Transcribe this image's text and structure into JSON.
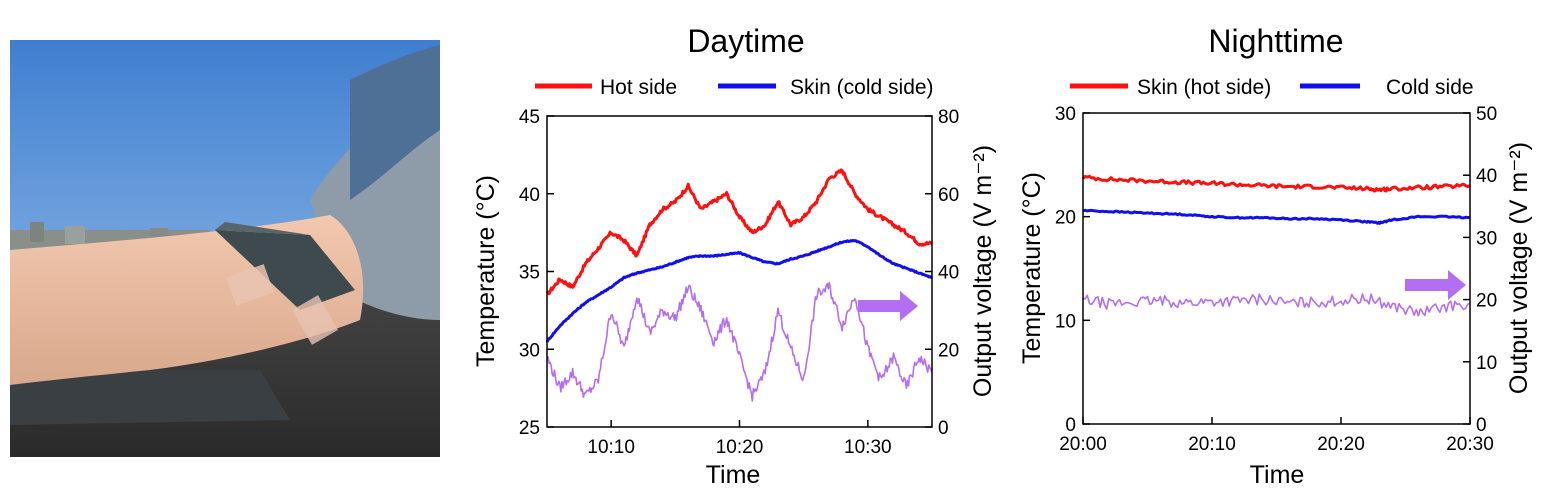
{
  "colors": {
    "hot": "#ff1010",
    "cold": "#1010ee",
    "voltage": "#b36ef2",
    "arrow": "#b36ef2"
  },
  "photo": {
    "description_icon": "photo-arm-with-device-outdoors"
  },
  "chart_data": [
    {
      "type": "line",
      "title": "Daytime",
      "xlabel": "Time",
      "ylabel": "Temperature (°C)",
      "y2label": "Output voltage (V m⁻²)",
      "x_unit": "minutes after 10:00",
      "xlim": [
        5,
        35
      ],
      "ylim": [
        25,
        45
      ],
      "y2lim": [
        0,
        80
      ],
      "xticks": [
        10,
        20,
        30
      ],
      "xticklabels": [
        "10:10",
        "10:20",
        "10:30"
      ],
      "yticks": [
        25,
        30,
        35,
        40,
        45
      ],
      "y2ticks": [
        0,
        20,
        40,
        60,
        80
      ],
      "legend": "top",
      "series": [
        {
          "name": "Hot side",
          "axis": "left",
          "color": "#ff1010",
          "x": [
            5,
            6,
            7,
            8,
            9,
            10,
            11,
            12,
            13,
            14,
            15,
            16,
            17,
            18,
            19,
            20,
            21,
            22,
            23,
            24,
            25,
            26,
            27,
            28,
            29,
            30,
            31,
            32,
            33,
            34,
            35
          ],
          "y": [
            33.5,
            34.5,
            34.0,
            35.5,
            36.5,
            37.5,
            37.0,
            36.0,
            38.0,
            39.0,
            39.5,
            40.5,
            39.0,
            39.5,
            40.0,
            38.5,
            37.5,
            38.0,
            39.5,
            38.0,
            38.5,
            39.5,
            41.0,
            41.5,
            40.0,
            39.0,
            38.5,
            38.0,
            37.5,
            36.8,
            36.8
          ]
        },
        {
          "name": "Skin (cold side)",
          "axis": "left",
          "color": "#1010ee",
          "x": [
            5,
            6,
            7,
            8,
            9,
            10,
            11,
            12,
            13,
            14,
            15,
            16,
            17,
            18,
            19,
            20,
            21,
            22,
            23,
            24,
            25,
            26,
            27,
            28,
            29,
            30,
            31,
            32,
            33,
            34,
            35
          ],
          "y": [
            30.5,
            31.5,
            32.3,
            33.0,
            33.5,
            34.0,
            34.6,
            34.9,
            35.1,
            35.3,
            35.6,
            35.9,
            36.0,
            36.0,
            36.1,
            36.2,
            35.9,
            35.6,
            35.5,
            35.8,
            36.0,
            36.3,
            36.6,
            36.9,
            37.0,
            36.6,
            36.0,
            35.5,
            35.2,
            34.9,
            34.6
          ]
        },
        {
          "name": "",
          "axis": "right",
          "color": "#b36ef2",
          "x": [
            5,
            6,
            7,
            8,
            9,
            10,
            11,
            12,
            13,
            14,
            15,
            16,
            17,
            18,
            19,
            20,
            21,
            22,
            23,
            24,
            25,
            26,
            27,
            28,
            29,
            30,
            31,
            32,
            33,
            34,
            35
          ],
          "y": [
            18,
            10,
            14,
            8,
            12,
            30,
            20,
            34,
            24,
            30,
            28,
            36,
            30,
            22,
            28,
            18,
            8,
            14,
            30,
            20,
            12,
            34,
            36,
            26,
            34,
            20,
            12,
            18,
            10,
            18,
            14
          ]
        }
      ],
      "annotation": {
        "type": "arrow",
        "direction": "right",
        "meaning": "right axis",
        "color": "#b36ef2"
      }
    },
    {
      "type": "line",
      "title": "Nighttime",
      "xlabel": "Time",
      "ylabel": "Temperature (°C)",
      "y2label": "Output voltage (V m⁻²)",
      "x_unit": "minutes after 20:00",
      "xlim": [
        0,
        30
      ],
      "ylim": [
        0,
        30
      ],
      "y2lim": [
        0,
        50
      ],
      "xticks": [
        0,
        10,
        20,
        30
      ],
      "xticklabels": [
        "20:00",
        "20:10",
        "20:20",
        "20:30"
      ],
      "yticks": [
        0,
        10,
        20,
        30
      ],
      "y2ticks": [
        0,
        10,
        20,
        30,
        40,
        50
      ],
      "legend": "top",
      "series": [
        {
          "name": "Skin (hot side)",
          "axis": "left",
          "color": "#ff1010",
          "x": [
            0,
            2,
            4,
            6,
            8,
            10,
            12,
            14,
            16,
            18,
            20,
            22,
            23,
            24,
            26,
            28,
            30
          ],
          "y": [
            23.8,
            23.6,
            23.5,
            23.4,
            23.3,
            23.2,
            23.1,
            23.0,
            22.9,
            22.9,
            22.8,
            22.7,
            22.6,
            22.7,
            22.8,
            22.9,
            23.0
          ]
        },
        {
          "name": "Cold side",
          "axis": "left",
          "color": "#1010ee",
          "x": [
            0,
            2,
            4,
            6,
            8,
            10,
            12,
            14,
            16,
            18,
            20,
            22,
            23,
            24,
            26,
            28,
            30
          ],
          "y": [
            20.6,
            20.5,
            20.4,
            20.3,
            20.2,
            20.0,
            19.9,
            19.9,
            19.8,
            19.8,
            19.7,
            19.5,
            19.4,
            19.7,
            20.0,
            20.0,
            19.9
          ]
        },
        {
          "name": "",
          "axis": "right",
          "color": "#b36ef2",
          "x": [
            0,
            2,
            4,
            6,
            8,
            10,
            12,
            14,
            16,
            18,
            20,
            22,
            24,
            26,
            28,
            30
          ],
          "y": [
            20.0,
            19.3,
            19.6,
            19.8,
            19.5,
            19.7,
            19.8,
            20.1,
            19.4,
            19.6,
            19.8,
            20.2,
            19.0,
            17.8,
            18.8,
            19.4
          ]
        }
      ],
      "annotation": {
        "type": "arrow",
        "direction": "right",
        "meaning": "right axis",
        "color": "#b36ef2"
      }
    }
  ]
}
